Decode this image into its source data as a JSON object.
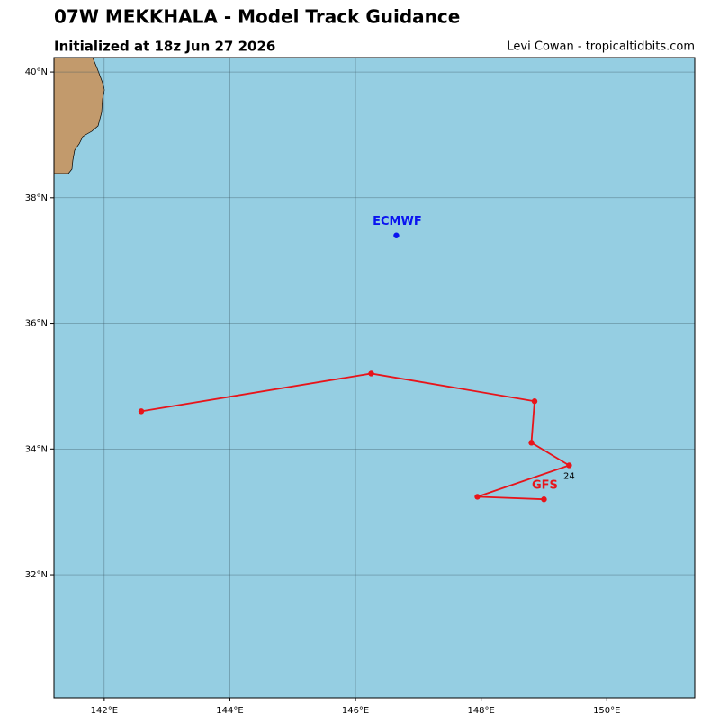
{
  "chart_data": {
    "type": "track",
    "title": "07W MEKKHALA - Model Track Guidance",
    "subtitle": "Initialized at 18z Jun 27 2026",
    "credit": "Levi Cowan - tropicaltidbits.com",
    "xlim": [
      141.2,
      151.4
    ],
    "ylim": [
      30.04,
      40.23
    ],
    "xticks": [
      {
        "value": 142,
        "label": "142°E"
      },
      {
        "value": 144,
        "label": "144°E"
      },
      {
        "value": 146,
        "label": "146°E"
      },
      {
        "value": 148,
        "label": "148°E"
      },
      {
        "value": 150,
        "label": "150°E"
      }
    ],
    "yticks": [
      {
        "value": 32,
        "label": "32°N"
      },
      {
        "value": 34,
        "label": "34°N"
      },
      {
        "value": 36,
        "label": "36°N"
      },
      {
        "value": 38,
        "label": "38°N"
      },
      {
        "value": 40,
        "label": "40°N"
      }
    ],
    "grid": true,
    "series": [
      {
        "name": "GFS",
        "color": "#e8141a",
        "x": [
          149.0,
          147.94,
          149.4,
          148.8,
          148.85,
          146.25,
          142.59
        ],
        "values": [
          33.2,
          33.24,
          33.74,
          34.1,
          34.76,
          35.2,
          34.6
        ],
        "point_labels": [
          null,
          null,
          "24",
          null,
          null,
          null,
          null
        ]
      },
      {
        "name": "ECMWF",
        "color": "#0a14f0",
        "x": [
          146.65
        ],
        "values": [
          37.4
        ]
      }
    ]
  }
}
